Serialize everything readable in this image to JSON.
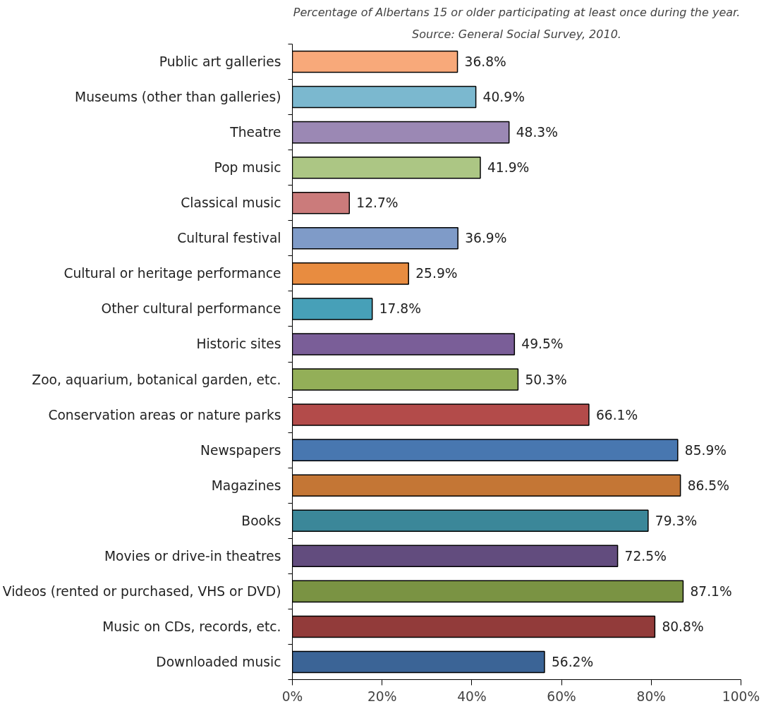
{
  "chart_data": {
    "type": "bar",
    "orientation": "horizontal",
    "title": "Percentage of Albertans 15 or older participating at least once during the year.",
    "annotations": [
      "Source: General Social Survey, 2010."
    ],
    "categories": [
      "Public art galleries",
      "Museums (other than galleries)",
      "Theatre",
      "Pop music",
      "Classical music",
      "Cultural festival",
      "Cultural or heritage performance",
      "Other cultural performance",
      "Historic sites",
      "Zoo, aquarium, botanical garden, etc.",
      "Conservation areas or nature parks",
      "Newspapers",
      "Magazines",
      "Books",
      "Movies or drive-in theatres",
      "Videos (rented or purchased, VHS or DVD)",
      "Music on CDs, records, etc.",
      "Downloaded music"
    ],
    "values": [
      36.8,
      40.9,
      48.3,
      41.9,
      12.7,
      36.9,
      25.9,
      17.8,
      49.5,
      50.3,
      66.1,
      85.9,
      86.5,
      79.3,
      72.5,
      87.1,
      80.8,
      56.2
    ],
    "value_labels": [
      "36.8%",
      "40.9%",
      "48.3%",
      "41.9%",
      "12.7%",
      "36.9%",
      "25.9%",
      "17.8%",
      "49.5%",
      "50.3%",
      "66.1%",
      "85.9%",
      "86.5%",
      "79.3%",
      "72.5%",
      "87.1%",
      "80.8%",
      "56.2%"
    ],
    "colors": [
      "#f8a97a",
      "#7bb8cf",
      "#9b88b4",
      "#acc684",
      "#cb7b7b",
      "#7f9bc8",
      "#e88c40",
      "#47a0b8",
      "#7a5e98",
      "#93af58",
      "#b34b4a",
      "#4877b0",
      "#c47635",
      "#3b8799",
      "#624c7e",
      "#7a9343",
      "#923b3a",
      "#3b6496"
    ],
    "xlim": [
      0,
      100
    ],
    "xticks": [
      {
        "value": 0,
        "label": "0%"
      },
      {
        "value": 20,
        "label": "20%"
      },
      {
        "value": 40,
        "label": "40%"
      },
      {
        "value": 60,
        "label": "60%"
      },
      {
        "value": 80,
        "label": "80%"
      },
      {
        "value": 100,
        "label": "100%"
      }
    ],
    "grid": false
  }
}
